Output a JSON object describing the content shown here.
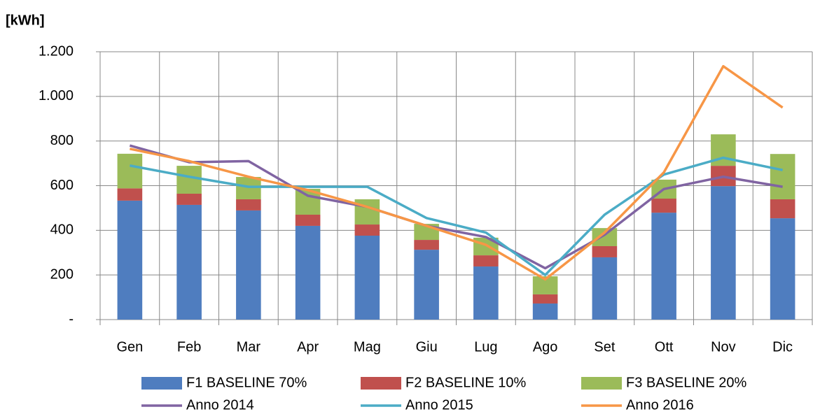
{
  "chart_data": {
    "type": "combo",
    "y_label": "[kWh]",
    "categories": [
      "Gen",
      "Feb",
      "Mar",
      "Apr",
      "Mag",
      "Giu",
      "Lug",
      "Ago",
      "Set",
      "Ott",
      "Nov",
      "Dic"
    ],
    "ylim": [
      0,
      1200
    ],
    "yticks": [
      {
        "value": 0,
        "label": "-"
      },
      200,
      400,
      600,
      800,
      {
        "value": 1000,
        "label": "1.000"
      },
      {
        "value": 1200,
        "label": "1.200"
      }
    ],
    "grid": true,
    "stacked": true,
    "series": [
      {
        "name": "F1 BASELINE 70%",
        "kind": "bar",
        "color": "#4f7dbf",
        "values": [
          533,
          514,
          489,
          420,
          376,
          313,
          238,
          72,
          279,
          479,
          598,
          454
        ]
      },
      {
        "name": "F2 BASELINE 10%",
        "kind": "bar",
        "color": "#c0504d",
        "values": [
          55,
          50,
          50,
          50,
          50,
          44,
          50,
          41,
          50,
          63,
          91,
          85
        ]
      },
      {
        "name": "F3 BASELINE 20%",
        "kind": "bar",
        "color": "#9bbb59",
        "values": [
          155,
          125,
          100,
          116,
          113,
          72,
          79,
          81,
          81,
          85,
          141,
          203
        ]
      },
      {
        "name": "Anno 2014",
        "kind": "line",
        "color": "#8064a2",
        "values": [
          780,
          705,
          710,
          555,
          505,
          420,
          370,
          230,
          380,
          585,
          640,
          595
        ]
      },
      {
        "name": "Anno 2015",
        "kind": "line",
        "color": "#4bacc6",
        "values": [
          690,
          640,
          595,
          595,
          595,
          455,
          390,
          200,
          470,
          650,
          725,
          670
        ]
      },
      {
        "name": "Anno 2016",
        "kind": "line",
        "color": "#f79646",
        "values": [
          765,
          710,
          640,
          580,
          505,
          420,
          335,
          180,
          390,
          660,
          1135,
          950
        ]
      }
    ]
  }
}
